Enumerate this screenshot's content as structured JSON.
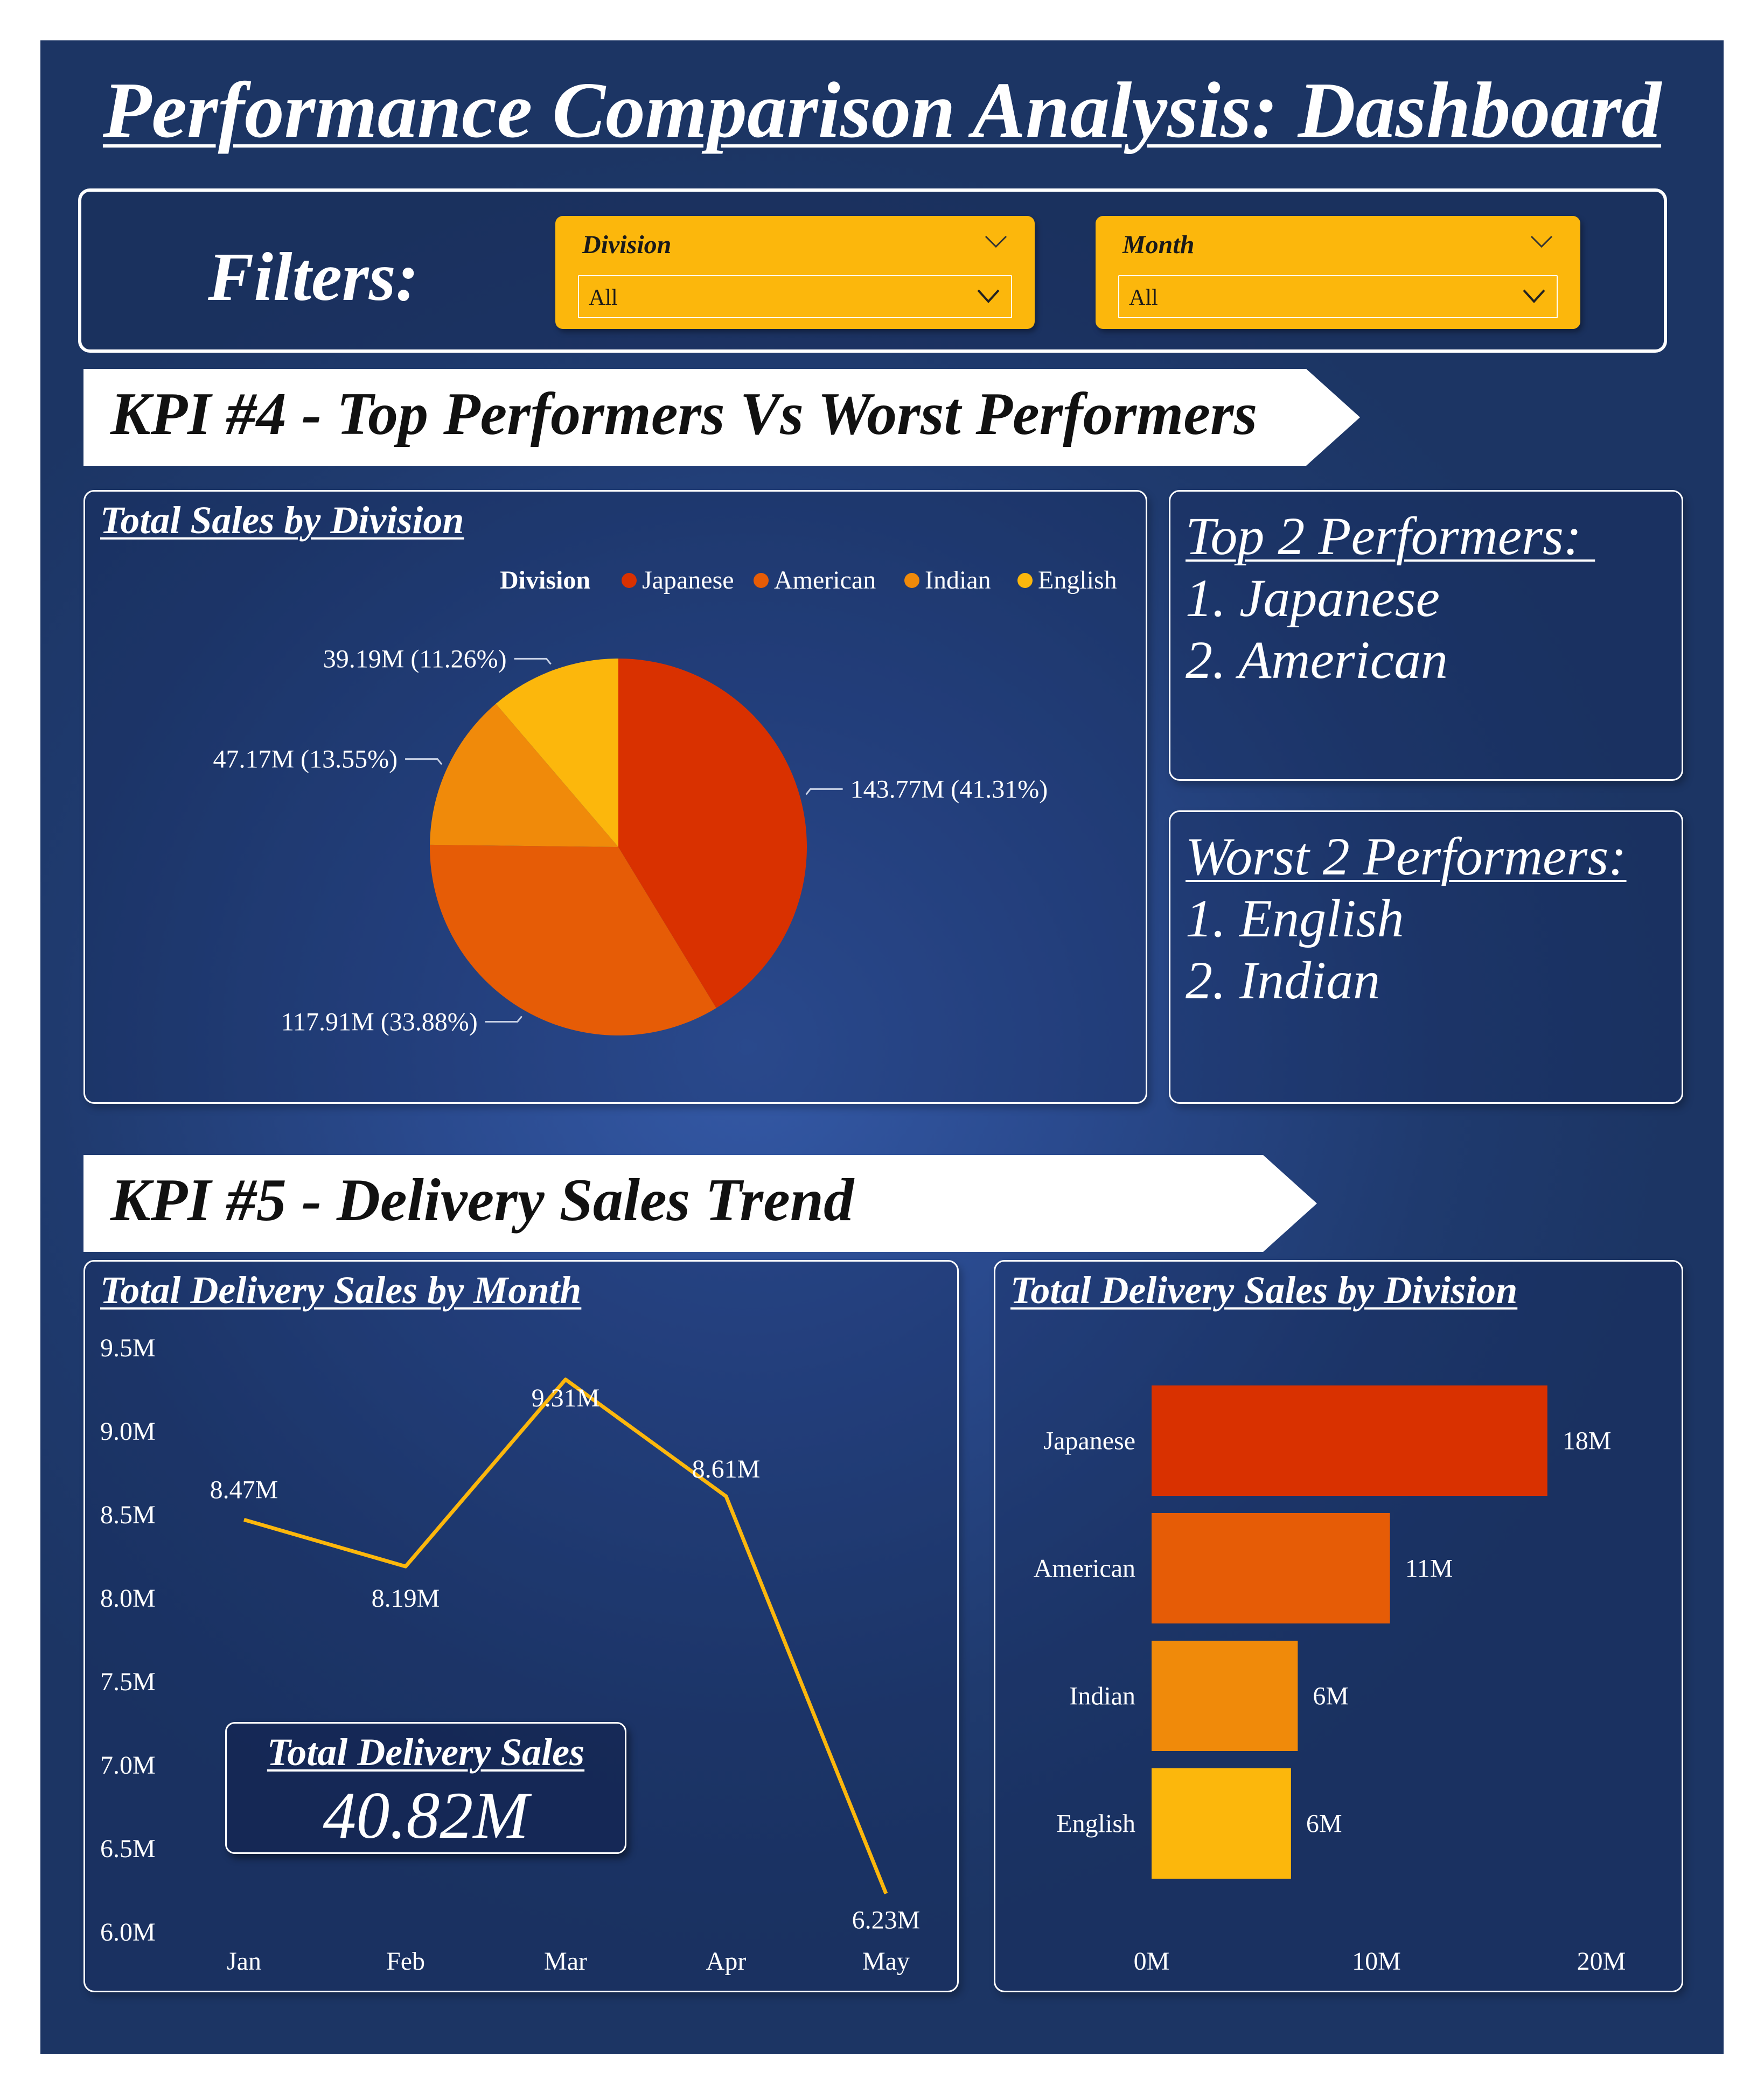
{
  "dashboard_title": "Performance Comparison Analysis: Dashboard",
  "filters": {
    "label": "Filters:",
    "division": {
      "title": "Division",
      "value": "All"
    },
    "month": {
      "title": "Month",
      "value": "All"
    }
  },
  "kpi4": {
    "title": "KPI #4 - Top Performers Vs Worst Performers"
  },
  "kpi5": {
    "title": "KPI #5 - Delivery Sales Trend"
  },
  "top_performers": {
    "heading": "Top 2 Performers: ",
    "items": [
      "1. Japanese",
      "2. American"
    ]
  },
  "worst_performers": {
    "heading": "Worst 2 Performers:",
    "items": [
      "1. English",
      "2. Indian"
    ]
  },
  "total_delivery": {
    "title": "Total Delivery Sales",
    "value": "40.82M"
  },
  "colors": {
    "japanese": "#d93100",
    "american": "#e65c06",
    "indian": "#f08a0a",
    "english": "#fcb70c",
    "line": "#fcb70c"
  },
  "chart_data": [
    {
      "type": "pie",
      "title": "Total Sales by Division",
      "legend_title": "Division",
      "legend_position": "top-right",
      "categories": [
        "Japanese",
        "American",
        "Indian",
        "English"
      ],
      "values": [
        143.77,
        117.91,
        47.17,
        39.19
      ],
      "data_labels": [
        "143.77M (41.31%)",
        "117.91M (33.88%)",
        "47.17M (13.55%)",
        "39.19M (11.26%)"
      ]
    },
    {
      "type": "line",
      "title": "Total Delivery Sales by Month",
      "categories": [
        "Jan",
        "Feb",
        "Mar",
        "Apr",
        "May"
      ],
      "values": [
        8.47,
        8.19,
        9.31,
        8.61,
        6.23
      ],
      "data_labels": [
        "8.47M",
        "8.19M",
        "9.31M",
        "8.61M",
        "6.23M"
      ],
      "ylim": [
        6.0,
        9.5
      ],
      "yticks": [
        "6.0M",
        "6.5M",
        "7.0M",
        "7.5M",
        "8.0M",
        "8.5M",
        "9.0M",
        "9.5M"
      ],
      "grid": false
    },
    {
      "type": "bar",
      "orientation": "horizontal",
      "title": "Total Delivery Sales by Division",
      "categories": [
        "Japanese",
        "American",
        "Indian",
        "English"
      ],
      "values": [
        17.6,
        10.6,
        6.5,
        6.2
      ],
      "data_labels": [
        "18M",
        "11M",
        "6M",
        "6M"
      ],
      "xlim": [
        0,
        20
      ],
      "xticks": [
        "0M",
        "10M",
        "20M"
      ],
      "grid": false
    }
  ]
}
